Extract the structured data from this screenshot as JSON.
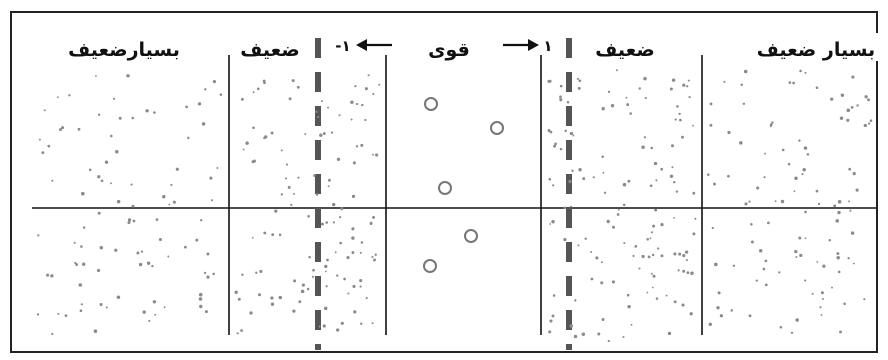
{
  "labels": {
    "very_weak_left": "بسیارضعیف",
    "weak_left": "ضعیف",
    "strong": "قوی",
    "weak_right": "ضعیف",
    "very_weak_right": "بسیار ضعیف"
  },
  "thresholds": {
    "left": "-۱",
    "right": "۱"
  },
  "colors": {
    "ink": "#111111",
    "dots": "#8a8a8a",
    "frame": "#222222",
    "dashed": "#555555",
    "circles": "#777777"
  }
}
